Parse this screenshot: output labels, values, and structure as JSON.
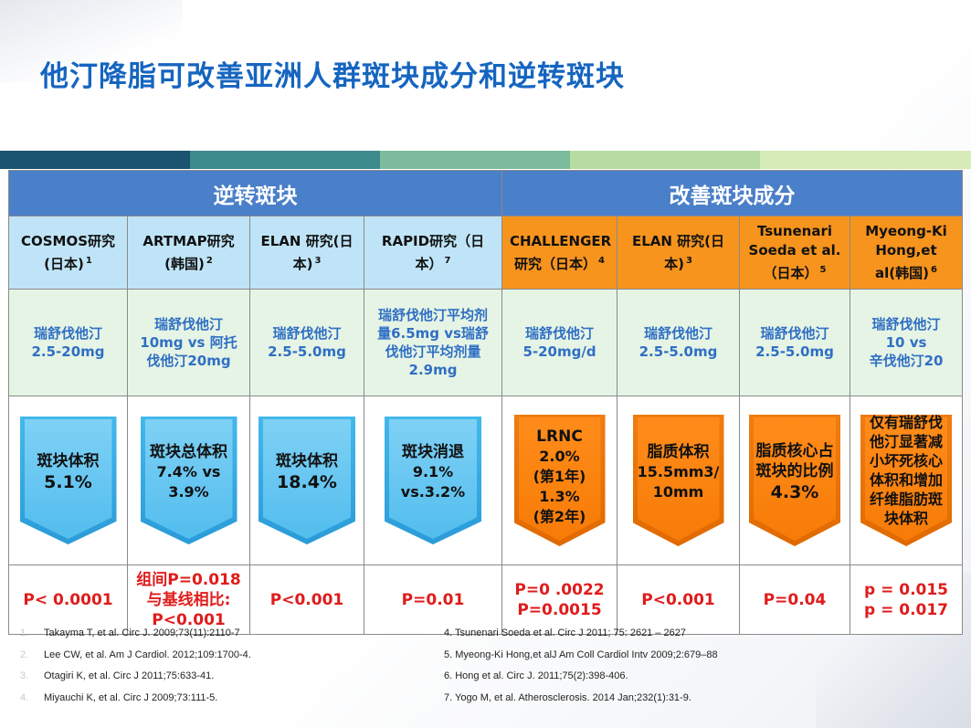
{
  "title": "他汀降脂可改善亚洲人群斑块成分和逆转斑块",
  "colors": {
    "title": "#1565c0",
    "header": "#4a7fc9",
    "study_blue": "#bfe4f7",
    "study_orange": "#f7941d",
    "dose_bg": "#e6f4e5",
    "dose_text": "#2f6fc4",
    "arrow_blue": "#52bdee",
    "arrow_orange": "#f77b07",
    "pvalue": "#e01b1b",
    "bar_segments": [
      "#1a5470",
      "#3d8a8c",
      "#7cbc9c",
      "#b6dca2",
      "#d7ebb7"
    ]
  },
  "groups": [
    {
      "label": "逆转斑块"
    },
    {
      "label": "改善斑块成分"
    }
  ],
  "studies": [
    {
      "name": "COSMOS研究(日本)",
      "ref": "1",
      "dose": "瑞舒伐他汀\n2.5-20mg",
      "result_label": "斑块体积",
      "result_value": "5.1%",
      "pvalue": "P< 0.0001"
    },
    {
      "name": "ARTMAP研究(韩国)",
      "ref": "2",
      "dose": "瑞舒伐他汀\n10mg vs 阿托伐他汀20mg",
      "result_label": "斑块总体积",
      "result_value": "7.4% vs\n3.9%",
      "pvalue": "组间P=0.018\n与基线相比:\nP<0.001"
    },
    {
      "name": "ELAN 研究(日本)",
      "ref": "3",
      "dose": "瑞舒伐他汀\n2.5-5.0mg",
      "result_label": "斑块体积",
      "result_value": "18.4%",
      "pvalue": "P<0.001"
    },
    {
      "name": "RAPID研究（日本）",
      "ref": "7",
      "dose": "瑞舒伐他汀平均剂量6.5mg vs瑞舒伐他汀平均剂量2.9mg",
      "result_label": "斑块消退",
      "result_value": "9.1%\nvs.3.2%",
      "pvalue": "P=0.01"
    },
    {
      "name": "CHALLENGER 研究（日本）",
      "ref": "4",
      "dose": "瑞舒伐他汀\n5-20mg/d",
      "result_label": "LRNC",
      "result_value": "2.0%\n(第1年)\n1.3%\n(第2年)",
      "pvalue": "P=0 .0022\nP=0.0015"
    },
    {
      "name": "ELAN 研究(日本)",
      "ref": "3",
      "dose": "瑞舒伐他汀\n2.5-5.0mg",
      "result_label": "脂质体积",
      "result_value": "15.5mm3/\n10mm",
      "pvalue": "P<0.001"
    },
    {
      "name": "Tsunenari Soeda et al.（日本）",
      "ref": "5",
      "dose": "瑞舒伐他汀\n2.5-5.0mg",
      "result_label": "脂质核心占斑块的比例",
      "result_value": "4.3%",
      "pvalue": "P=0.04"
    },
    {
      "name": "Myeong-Ki Hong,et al(韩国)",
      "ref": "6",
      "dose": "瑞舒伐他汀\n10 vs\n辛伐他汀20",
      "result_label": "仅有瑞舒伐他汀显著减小坏死核心体积和增加纤维脂肪斑块体积",
      "result_value": "",
      "pvalue": "p = 0.015\np = 0.017"
    }
  ],
  "references_left": [
    {
      "num": "1.",
      "text": "Takayma T, et al. Circ J. 2009;73(11):2110-7"
    },
    {
      "num": "2.",
      "text": "Lee CW, et al. Am J Cardiol. 2012;109:1700-4."
    },
    {
      "num": "3.",
      "text": "Otagiri K, et al. Circ J 2011;75:633-41."
    },
    {
      "num": "4.",
      "text": "Miyauchi K, et al. Circ J 2009;73:111-5."
    }
  ],
  "references_right": [
    "4.  Tsunenari Soeda et al. Circ J 2011; 75: 2621 – 2627",
    "5.  Myeong-Ki Hong,et alJ Am Coll Cardiol Intv 2009;2:679–88",
    "6. Hong et al. Circ J. 2011;75(2):398-406.",
    "7. Yogo M, et al. Atherosclerosis. 2014 Jan;232(1):31-9."
  ]
}
